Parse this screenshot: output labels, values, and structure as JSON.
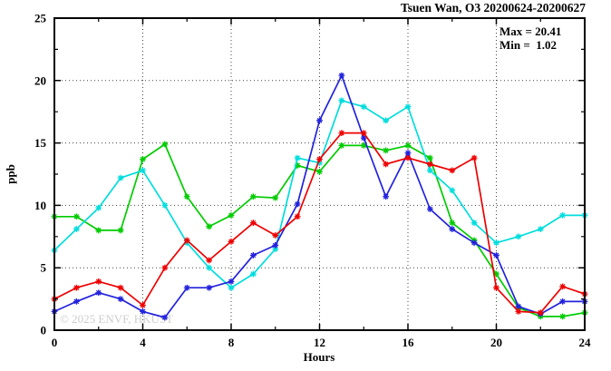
{
  "title": "Tsuen Wan, O3 20200624-20200627",
  "annotations": {
    "max_label": "Max = 20.41",
    "min_label": "Min =  1.02"
  },
  "watermark": "© 2025 ENVF, HKUST",
  "chart_data": {
    "type": "line",
    "title": "Tsuen Wan, O3 20200624-20200627",
    "xlabel": "Hours",
    "ylabel": "ppb",
    "xlim": [
      0,
      24
    ],
    "ylim": [
      0,
      25
    ],
    "x_major_ticks": [
      0,
      4,
      8,
      12,
      16,
      20,
      24
    ],
    "x_minor_ticks": [
      2,
      6,
      10,
      14,
      18,
      22
    ],
    "y_major_ticks": [
      0,
      5,
      10,
      15,
      20,
      25
    ],
    "y_minor_ticks": [
      2.5,
      7.5,
      12.5,
      17.5,
      22.5
    ],
    "grid": true,
    "legend_position": "none",
    "stat_max": 20.41,
    "stat_min": 1.02,
    "marker": "asterisk",
    "x": [
      0,
      1,
      2,
      3,
      4,
      5,
      6,
      7,
      8,
      9,
      10,
      11,
      12,
      13,
      14,
      15,
      16,
      17,
      18,
      19,
      20,
      21,
      22,
      23,
      24
    ],
    "series": [
      {
        "name": "green-day",
        "color": "#00cc00",
        "values": [
          9.1,
          9.1,
          8.0,
          8.0,
          13.7,
          14.9,
          10.7,
          8.3,
          9.2,
          10.7,
          10.6,
          13.2,
          12.7,
          14.8,
          14.8,
          14.4,
          14.8,
          13.8,
          8.6,
          7.2,
          4.5,
          1.8,
          1.1,
          1.1,
          1.4
        ]
      },
      {
        "name": "cyan-day",
        "color": "#00dddd",
        "values": [
          6.4,
          8.1,
          9.8,
          12.2,
          12.8,
          10.0,
          7.0,
          5.0,
          3.4,
          4.5,
          6.5,
          13.8,
          13.4,
          18.4,
          17.9,
          16.8,
          17.9,
          12.8,
          11.2,
          8.6,
          7.0,
          7.5,
          8.1,
          9.2,
          9.2
        ]
      },
      {
        "name": "blue-day",
        "color": "#2222dd",
        "values": [
          1.5,
          2.3,
          3.0,
          2.5,
          1.5,
          1.02,
          3.4,
          3.4,
          3.9,
          6.0,
          6.8,
          10.1,
          16.8,
          20.41,
          15.4,
          10.7,
          14.2,
          9.7,
          8.1,
          7.0,
          6.0,
          1.9,
          1.3,
          2.3,
          2.3
        ]
      },
      {
        "name": "red-day",
        "color": "#ee0000",
        "values": [
          2.5,
          3.4,
          3.9,
          3.4,
          2.0,
          5.0,
          7.2,
          5.6,
          7.1,
          8.6,
          7.6,
          9.1,
          13.7,
          15.8,
          15.8,
          13.3,
          13.8,
          13.3,
          12.8,
          13.8,
          3.4,
          1.5,
          1.4,
          3.5,
          2.9
        ]
      }
    ]
  }
}
